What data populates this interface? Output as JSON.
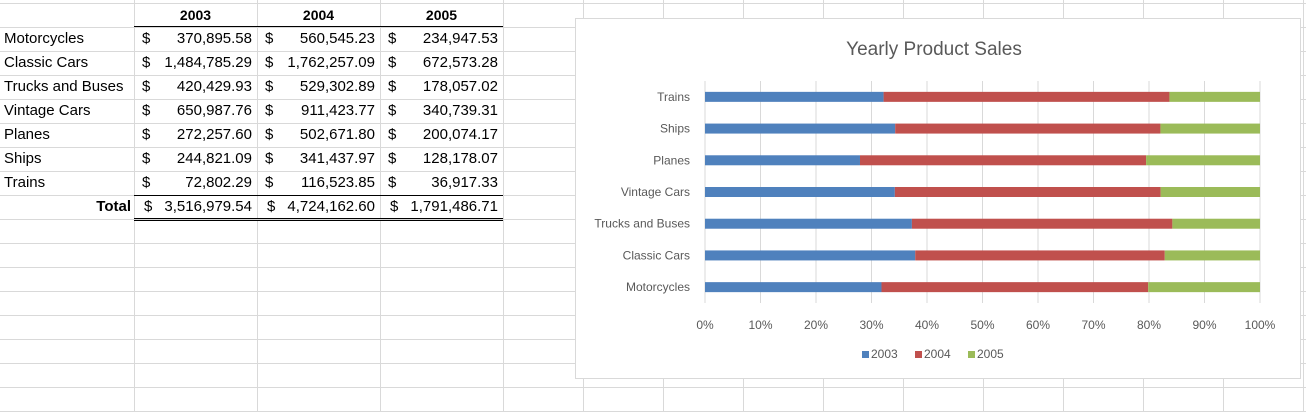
{
  "table": {
    "years": [
      "2003",
      "2004",
      "2005"
    ],
    "rows": [
      {
        "name": "Motorcycles",
        "values": [
          "370,895.58",
          "560,545.23",
          "234,947.53"
        ]
      },
      {
        "name": "Classic Cars",
        "values": [
          "1,484,785.29",
          "1,762,257.09",
          "672,573.28"
        ]
      },
      {
        "name": "Trucks and Buses",
        "values": [
          "420,429.93",
          "529,302.89",
          "178,057.02"
        ]
      },
      {
        "name": "Vintage Cars",
        "values": [
          "650,987.76",
          "911,423.77",
          "340,739.31"
        ]
      },
      {
        "name": "Planes",
        "values": [
          "272,257.60",
          "502,671.80",
          "200,074.17"
        ]
      },
      {
        "name": "Ships",
        "values": [
          "244,821.09",
          "341,437.97",
          "128,178.07"
        ]
      },
      {
        "name": "Trains",
        "values": [
          "72,802.29",
          "116,523.85",
          "36,917.33"
        ]
      }
    ],
    "total_label": "Total",
    "totals": [
      "3,516,979.54",
      "4,724,162.60",
      "1,791,486.71"
    ],
    "currency_symbol": "$"
  },
  "chart_data": {
    "type": "bar",
    "orientation": "horizontal",
    "stacked": "percent",
    "title": "Yearly Product Sales",
    "categories": [
      "Trains",
      "Ships",
      "Planes",
      "Vintage Cars",
      "Trucks and Buses",
      "Classic Cars",
      "Motorcycles"
    ],
    "series": [
      {
        "name": "2003",
        "color": "#4f81bd",
        "values": [
          72802.29,
          244821.09,
          272257.6,
          650987.76,
          420429.93,
          1484785.29,
          370895.58
        ]
      },
      {
        "name": "2004",
        "color": "#c0504d",
        "values": [
          116523.85,
          341437.97,
          502671.8,
          911423.77,
          529302.89,
          1762257.09,
          560545.23
        ]
      },
      {
        "name": "2005",
        "color": "#9bbb59",
        "values": [
          36917.33,
          128178.07,
          200074.17,
          340739.31,
          178057.02,
          672573.28,
          234947.53
        ]
      }
    ],
    "x_ticks": [
      "0%",
      "10%",
      "20%",
      "30%",
      "40%",
      "50%",
      "60%",
      "70%",
      "80%",
      "90%",
      "100%"
    ],
    "xlim": [
      0,
      100
    ],
    "grid": true,
    "legend_position": "bottom"
  }
}
